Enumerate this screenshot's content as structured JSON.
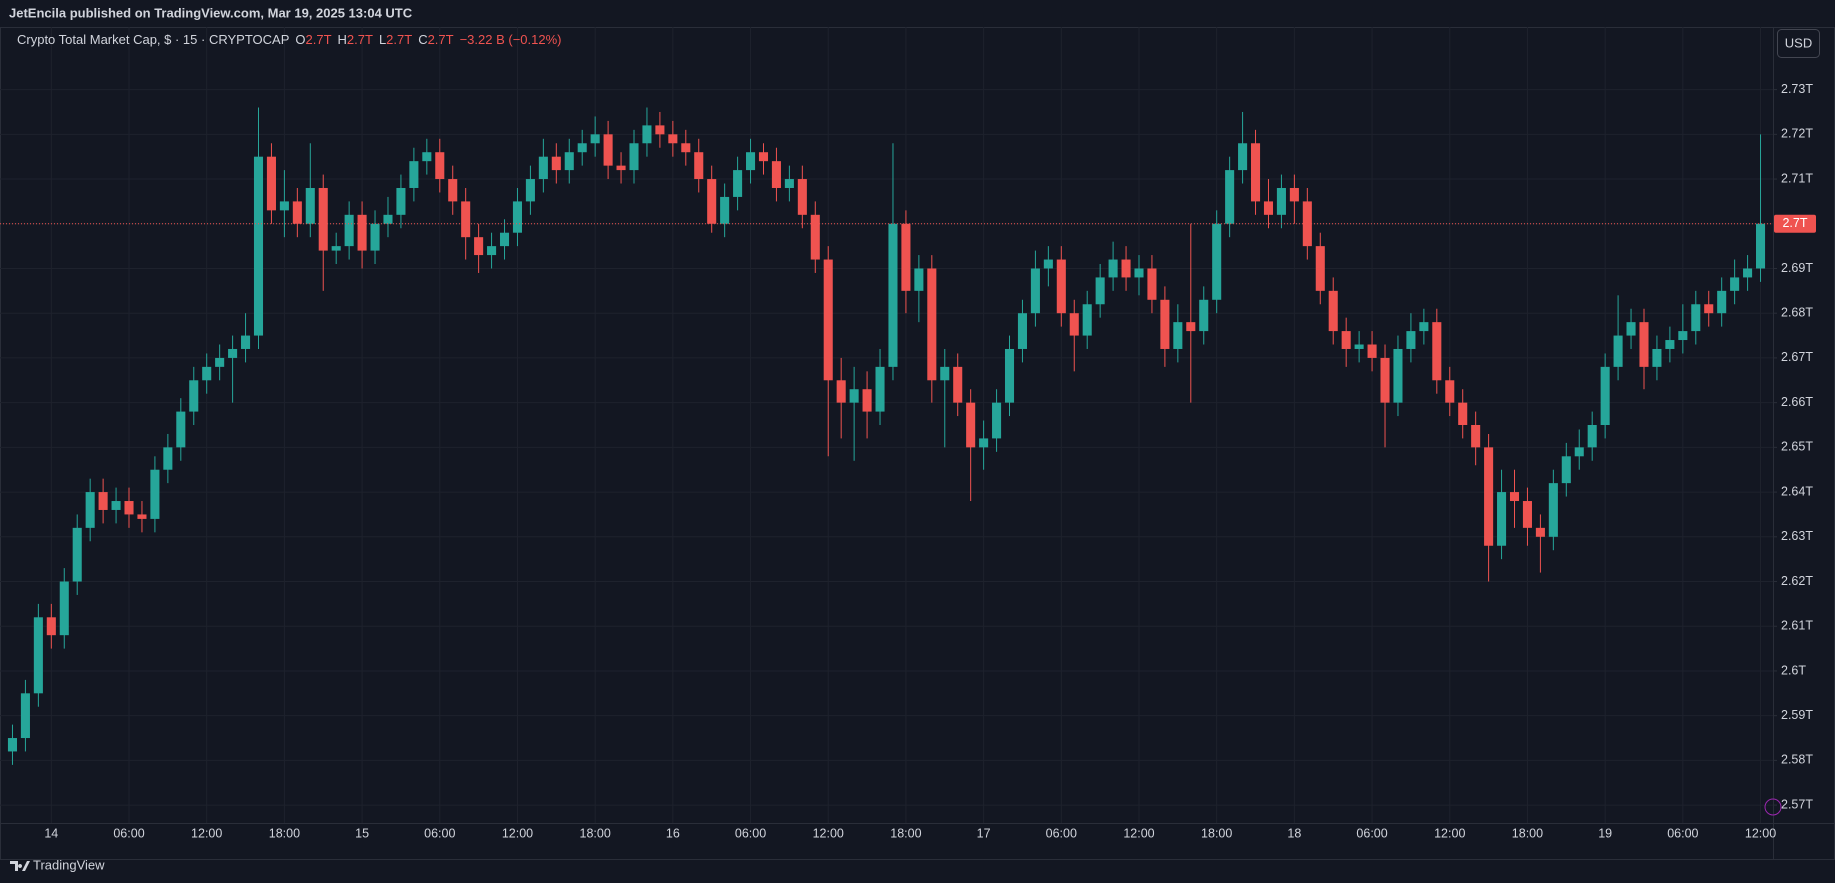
{
  "header": {
    "published": "JetEncila published on TradingView.com, Mar 19, 2025 13:04 UTC"
  },
  "footer": {
    "brand": "TradingView"
  },
  "chart_data": {
    "type": "candlestick",
    "title": "Crypto Total Market Cap, $ · 15 · CRYPTOCAP",
    "ohlc": [
      {
        "key": "O",
        "value": "2.7T"
      },
      {
        "key": "H",
        "value": "2.7T"
      },
      {
        "key": "L",
        "value": "2.7T"
      },
      {
        "key": "C",
        "value": "2.7T"
      }
    ],
    "change": "−3.22 B (−0.12%)",
    "currency": "USD",
    "up_color": "#26a69a",
    "down_color": "#ef5350",
    "grid": true,
    "ylim": [
      2.566,
      2.744
    ],
    "yticks": [
      {
        "value": 2.57,
        "label": "2.57T"
      },
      {
        "value": 2.58,
        "label": "2.58T"
      },
      {
        "value": 2.59,
        "label": "2.59T"
      },
      {
        "value": 2.6,
        "label": "2.6T"
      },
      {
        "value": 2.61,
        "label": "2.61T"
      },
      {
        "value": 2.62,
        "label": "2.62T"
      },
      {
        "value": 2.63,
        "label": "2.63T"
      },
      {
        "value": 2.64,
        "label": "2.64T"
      },
      {
        "value": 2.65,
        "label": "2.65T"
      },
      {
        "value": 2.66,
        "label": "2.66T"
      },
      {
        "value": 2.67,
        "label": "2.67T"
      },
      {
        "value": 2.68,
        "label": "2.68T"
      },
      {
        "value": 2.69,
        "label": "2.69T"
      },
      {
        "value": 2.7,
        "label": "2.7T"
      },
      {
        "value": 2.71,
        "label": "2.71T"
      },
      {
        "value": 2.72,
        "label": "2.72T"
      },
      {
        "value": 2.73,
        "label": "2.73T"
      }
    ],
    "last_price": {
      "value": 2.7,
      "label": "2.7T"
    },
    "categories": [
      null,
      null,
      null,
      "14",
      null,
      null,
      null,
      null,
      null,
      "06:00",
      null,
      null,
      null,
      null,
      null,
      "12:00",
      null,
      null,
      null,
      null,
      null,
      "18:00",
      null,
      null,
      null,
      null,
      null,
      "15",
      null,
      null,
      null,
      null,
      null,
      "06:00",
      null,
      null,
      null,
      null,
      null,
      "12:00",
      null,
      null,
      null,
      null,
      null,
      "18:00",
      null,
      null,
      null,
      null,
      null,
      "16",
      null,
      null,
      null,
      null,
      null,
      "06:00",
      null,
      null,
      null,
      null,
      null,
      "12:00",
      null,
      null,
      null,
      null,
      null,
      "18:00",
      null,
      null,
      null,
      null,
      null,
      "17",
      null,
      null,
      null,
      null,
      null,
      "06:00",
      null,
      null,
      null,
      null,
      null,
      "12:00",
      null,
      null,
      null,
      null,
      null,
      "18:00",
      null,
      null,
      null,
      null,
      null,
      "18",
      null,
      null,
      null,
      null,
      null,
      "06:00",
      null,
      null,
      null,
      null,
      null,
      "12:00",
      null,
      null,
      null,
      null,
      null,
      "18:00",
      null,
      null,
      null,
      null,
      null,
      "19",
      null,
      null,
      null,
      null,
      null,
      "06:00",
      null,
      null,
      null,
      null,
      null,
      "12:00"
    ],
    "open": [
      2.582,
      2.585,
      2.595,
      2.612,
      2.608,
      2.62,
      2.632,
      2.64,
      2.636,
      2.638,
      2.635,
      2.634,
      2.645,
      2.65,
      2.658,
      2.665,
      2.668,
      2.67,
      2.672,
      2.675,
      2.715,
      2.703,
      2.705,
      2.7,
      2.708,
      2.694,
      2.695,
      2.702,
      2.694,
      2.7,
      2.702,
      2.708,
      2.714,
      2.716,
      2.71,
      2.705,
      2.697,
      2.693,
      2.695,
      2.698,
      2.705,
      2.71,
      2.715,
      2.712,
      2.716,
      2.718,
      2.72,
      2.713,
      2.712,
      2.718,
      2.722,
      2.72,
      2.718,
      2.716,
      2.71,
      2.7,
      2.706,
      2.712,
      2.716,
      2.714,
      2.708,
      2.71,
      2.702,
      2.692,
      2.665,
      2.66,
      2.663,
      2.658,
      2.668,
      2.7,
      2.685,
      2.69,
      2.665,
      2.668,
      2.66,
      2.65,
      2.652,
      2.66,
      2.672,
      2.68,
      2.69,
      2.692,
      2.68,
      2.675,
      2.682,
      2.688,
      2.692,
      2.688,
      2.69,
      2.683,
      2.672,
      2.678,
      2.676,
      2.683,
      2.7,
      2.712,
      2.718,
      2.705,
      2.702,
      2.708,
      2.705,
      2.695,
      2.685,
      2.676,
      2.672,
      2.673,
      2.67,
      2.66,
      2.672,
      2.676,
      2.678,
      2.665,
      2.66,
      2.655,
      2.65,
      2.628,
      2.64,
      2.638,
      2.632,
      2.63,
      2.642,
      2.648,
      2.65,
      2.655,
      2.668,
      2.675,
      2.678,
      2.668,
      2.672,
      2.674,
      2.676,
      2.682,
      2.68,
      2.685,
      2.688,
      2.69
    ],
    "high": [
      2.588,
      2.598,
      2.615,
      2.615,
      2.623,
      2.635,
      2.643,
      2.643,
      2.641,
      2.641,
      2.638,
      2.648,
      2.653,
      2.661,
      2.668,
      2.671,
      2.673,
      2.675,
      2.68,
      2.726,
      2.718,
      2.712,
      2.708,
      2.718,
      2.711,
      2.698,
      2.705,
      2.705,
      2.703,
      2.706,
      2.711,
      2.717,
      2.719,
      2.719,
      2.713,
      2.708,
      2.7,
      2.698,
      2.701,
      2.708,
      2.713,
      2.719,
      2.718,
      2.719,
      2.721,
      2.724,
      2.723,
      2.716,
      2.721,
      2.726,
      2.725,
      2.723,
      2.721,
      2.719,
      2.713,
      2.709,
      2.715,
      2.719,
      2.718,
      2.717,
      2.713,
      2.713,
      2.705,
      2.695,
      2.67,
      2.668,
      2.667,
      2.672,
      2.718,
      2.703,
      2.693,
      2.693,
      2.672,
      2.671,
      2.663,
      2.656,
      2.663,
      2.675,
      2.683,
      2.694,
      2.695,
      2.695,
      2.683,
      2.685,
      2.691,
      2.696,
      2.695,
      2.693,
      2.693,
      2.686,
      2.682,
      2.7,
      2.686,
      2.703,
      2.715,
      2.725,
      2.721,
      2.71,
      2.711,
      2.711,
      2.708,
      2.698,
      2.688,
      2.679,
      2.676,
      2.676,
      2.673,
      2.675,
      2.68,
      2.681,
      2.681,
      2.668,
      2.663,
      2.658,
      2.653,
      2.645,
      2.645,
      2.641,
      2.635,
      2.645,
      2.651,
      2.654,
      2.658,
      2.671,
      2.684,
      2.681,
      2.681,
      2.675,
      2.677,
      2.682,
      2.685,
      2.685,
      2.688,
      2.692,
      2.693,
      2.72
    ],
    "low": [
      2.579,
      2.582,
      2.592,
      2.605,
      2.605,
      2.617,
      2.629,
      2.633,
      2.633,
      2.632,
      2.631,
      2.631,
      2.642,
      2.647,
      2.655,
      2.662,
      2.665,
      2.66,
      2.669,
      2.672,
      2.7,
      2.697,
      2.697,
      2.697,
      2.685,
      2.691,
      2.692,
      2.69,
      2.691,
      2.697,
      2.699,
      2.705,
      2.711,
      2.707,
      2.702,
      2.692,
      2.689,
      2.69,
      2.692,
      2.695,
      2.702,
      2.707,
      2.709,
      2.709,
      2.713,
      2.715,
      2.71,
      2.709,
      2.709,
      2.715,
      2.717,
      2.715,
      2.713,
      2.707,
      2.698,
      2.697,
      2.703,
      2.709,
      2.711,
      2.705,
      2.705,
      2.699,
      2.689,
      2.648,
      2.652,
      2.647,
      2.652,
      2.655,
      2.665,
      2.68,
      2.678,
      2.66,
      2.65,
      2.657,
      2.638,
      2.645,
      2.649,
      2.657,
      2.669,
      2.677,
      2.686,
      2.677,
      2.667,
      2.672,
      2.679,
      2.685,
      2.685,
      2.684,
      2.68,
      2.668,
      2.669,
      2.66,
      2.673,
      2.68,
      2.697,
      2.709,
      2.702,
      2.699,
      2.699,
      2.7,
      2.692,
      2.682,
      2.673,
      2.668,
      2.669,
      2.667,
      2.65,
      2.657,
      2.669,
      2.673,
      2.662,
      2.657,
      2.652,
      2.646,
      2.62,
      2.625,
      2.632,
      2.628,
      2.622,
      2.627,
      2.639,
      2.645,
      2.647,
      2.652,
      2.665,
      2.672,
      2.663,
      2.665,
      2.669,
      2.671,
      2.673,
      2.677,
      2.677,
      2.682,
      2.685,
      2.687
    ],
    "close": [
      2.585,
      2.595,
      2.612,
      2.608,
      2.62,
      2.632,
      2.64,
      2.636,
      2.638,
      2.635,
      2.634,
      2.645,
      2.65,
      2.658,
      2.665,
      2.668,
      2.67,
      2.672,
      2.675,
      2.715,
      2.703,
      2.705,
      2.7,
      2.708,
      2.694,
      2.695,
      2.702,
      2.694,
      2.7,
      2.702,
      2.708,
      2.714,
      2.716,
      2.71,
      2.705,
      2.697,
      2.693,
      2.695,
      2.698,
      2.705,
      2.71,
      2.715,
      2.712,
      2.716,
      2.718,
      2.72,
      2.713,
      2.712,
      2.718,
      2.722,
      2.72,
      2.718,
      2.716,
      2.71,
      2.7,
      2.706,
      2.712,
      2.716,
      2.714,
      2.708,
      2.71,
      2.702,
      2.692,
      2.665,
      2.66,
      2.663,
      2.658,
      2.668,
      2.7,
      2.685,
      2.69,
      2.665,
      2.668,
      2.66,
      2.65,
      2.652,
      2.66,
      2.672,
      2.68,
      2.69,
      2.692,
      2.68,
      2.675,
      2.682,
      2.688,
      2.692,
      2.688,
      2.69,
      2.683,
      2.672,
      2.678,
      2.676,
      2.683,
      2.7,
      2.712,
      2.718,
      2.705,
      2.702,
      2.708,
      2.705,
      2.695,
      2.685,
      2.676,
      2.672,
      2.673,
      2.67,
      2.66,
      2.672,
      2.676,
      2.678,
      2.665,
      2.66,
      2.655,
      2.65,
      2.628,
      2.64,
      2.638,
      2.632,
      2.63,
      2.642,
      2.648,
      2.65,
      2.655,
      2.668,
      2.675,
      2.678,
      2.668,
      2.672,
      2.674,
      2.676,
      2.682,
      2.68,
      2.685,
      2.688,
      2.69,
      2.7
    ]
  }
}
